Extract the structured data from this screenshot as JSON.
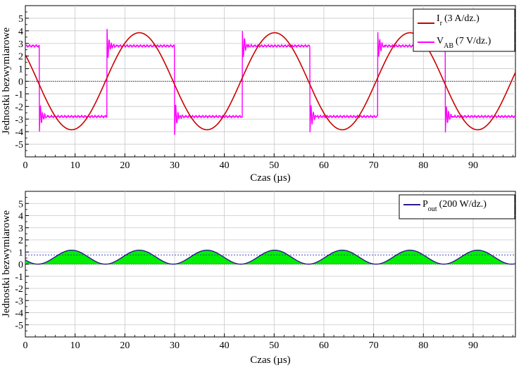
{
  "chart_data": [
    {
      "type": "line",
      "ylabel": "Jednostki bezwymiarowe",
      "xlabel": "Czas (µs)",
      "xlim": [
        0,
        98.5
      ],
      "ylim": [
        -6,
        6
      ],
      "xticks": [
        0,
        10,
        20,
        30,
        40,
        50,
        60,
        70,
        80,
        90
      ],
      "yticks": [
        5,
        4,
        3,
        2,
        1,
        0,
        -1,
        -2,
        -3,
        -4,
        -5
      ],
      "grid": true,
      "legend_position": "top-right",
      "series": [
        {
          "name": "I",
          "sub": "r",
          "note": "(3 A/dz.)",
          "color": "#cc0000",
          "shape": "sine",
          "amplitude": 3.85,
          "period_us": 27.2,
          "zero_crossings_us": [
            2.5,
            16.1,
            29.7,
            43.3,
            56.9,
            70.5,
            84.1,
            97.7
          ],
          "peaks": [
            [
              9.3,
              -3.85
            ],
            [
              22.9,
              3.85
            ],
            [
              36.5,
              -3.85
            ],
            [
              50.1,
              3.85
            ],
            [
              63.7,
              -3.85
            ],
            [
              77.3,
              3.85
            ],
            [
              90.9,
              -3.85
            ]
          ]
        },
        {
          "name": "V",
          "sub": "AB",
          "note": "(7 V/dz.)",
          "color": "#ff00ff",
          "shape": "square",
          "level": 2.8,
          "overshoot": 4.2,
          "transitions_us": [
            2.8,
            16.4,
            30.0,
            43.6,
            57.2,
            70.8,
            84.4
          ]
        }
      ]
    },
    {
      "type": "area",
      "ylabel": "Jednostki bezwymiarowe",
      "xlabel": "Czas (µs)",
      "xlim": [
        0,
        98.5
      ],
      "ylim": [
        -6,
        6
      ],
      "xticks": [
        0,
        10,
        20,
        30,
        40,
        50,
        60,
        70,
        80,
        90
      ],
      "yticks": [
        5,
        4,
        3,
        2,
        1,
        0,
        -1,
        -2,
        -3,
        -4,
        -5
      ],
      "grid": true,
      "legend_position": "top-right",
      "series": [
        {
          "name": "P",
          "sub": "out",
          "note": "(200 W/dz.)",
          "color": "#2a1a8a",
          "fill": "#00ee00",
          "shape": "rectified-sine-squared",
          "peak": 1.15,
          "average": 0.75,
          "zeros_us": [
            2.5,
            16.1,
            29.7,
            43.3,
            56.9,
            70.5,
            84.1,
            97.7
          ]
        }
      ]
    }
  ]
}
